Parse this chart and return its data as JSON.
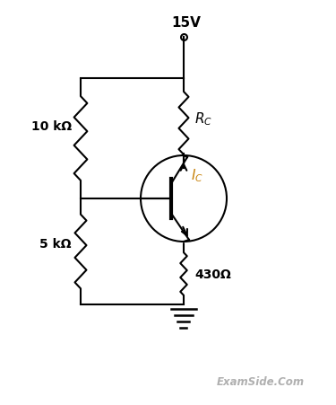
{
  "bg_color": "#ffffff",
  "line_color": "#000000",
  "text_color": "#000000",
  "label_color_blue": "#5B7FBF",
  "label_color_orange": "#C8820A",
  "watermark": "ExamSide.Com",
  "watermark_color": "#b0b0b0",
  "title_voltage": "15V",
  "label_RC": "$R_C$",
  "label_IC": "$I_C$",
  "label_10k": "10 kΩ",
  "label_5k": "5 kΩ",
  "label_430": "430Ω",
  "figsize": [
    3.75,
    4.52
  ],
  "dpi": 100
}
